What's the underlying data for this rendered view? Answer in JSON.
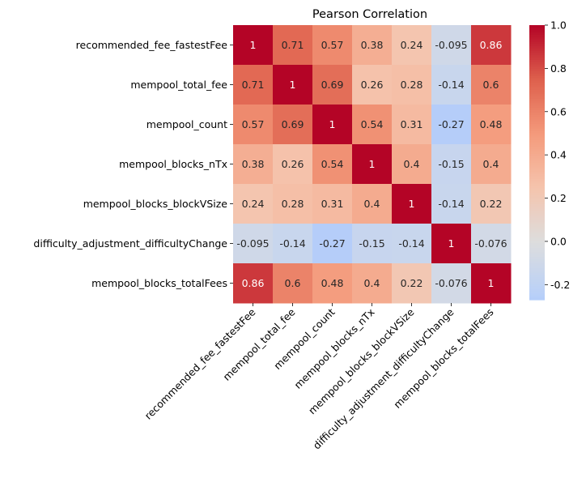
{
  "chart_data": {
    "type": "heatmap",
    "title": "Pearson Correlation",
    "labels": [
      "recommended_fee_fastestFee",
      "mempool_total_fee",
      "mempool_count",
      "mempool_blocks_nTx",
      "mempool_blocks_blockVSize",
      "difficulty_adjustment_difficultyChange",
      "mempool_blocks_totalFees"
    ],
    "values": [
      [
        1,
        0.71,
        0.57,
        0.38,
        0.24,
        -0.095,
        0.86
      ],
      [
        0.71,
        1,
        0.69,
        0.26,
        0.28,
        -0.14,
        0.6
      ],
      [
        0.57,
        0.69,
        1,
        0.54,
        0.31,
        -0.27,
        0.48
      ],
      [
        0.38,
        0.26,
        0.54,
        1,
        0.4,
        -0.15,
        0.4
      ],
      [
        0.24,
        0.28,
        0.31,
        0.4,
        1,
        -0.14,
        0.22
      ],
      [
        -0.095,
        -0.14,
        -0.27,
        -0.15,
        -0.14,
        1,
        -0.076
      ],
      [
        0.86,
        0.6,
        0.48,
        0.4,
        0.22,
        -0.076,
        1
      ]
    ],
    "annotations": [
      [
        "1",
        "0.71",
        "0.57",
        "0.38",
        "0.24",
        "-0.095",
        "0.86"
      ],
      [
        "0.71",
        "1",
        "0.69",
        "0.26",
        "0.28",
        "-0.14",
        "0.6"
      ],
      [
        "0.57",
        "0.69",
        "1",
        "0.54",
        "0.31",
        "-0.27",
        "0.48"
      ],
      [
        "0.38",
        "0.26",
        "0.54",
        "1",
        "0.4",
        "-0.15",
        "0.4"
      ],
      [
        "0.24",
        "0.28",
        "0.31",
        "0.4",
        "1",
        "-0.14",
        "0.22"
      ],
      [
        "-0.095",
        "-0.14",
        "-0.27",
        "-0.15",
        "-0.14",
        "1",
        "-0.076"
      ],
      [
        "0.86",
        "0.6",
        "0.48",
        "0.4",
        "0.22",
        "-0.076",
        "1"
      ]
    ],
    "colormap": "coolwarm",
    "center": 0,
    "vmin": -0.27,
    "vmax": 1,
    "colorbar_ticks": [
      "-0.2",
      "0.0",
      "0.2",
      "0.4",
      "0.6",
      "0.8",
      "1.0"
    ],
    "colorbar_tick_values": [
      -0.2,
      0,
      0.2,
      0.4,
      0.6,
      0.8,
      1.0
    ]
  }
}
